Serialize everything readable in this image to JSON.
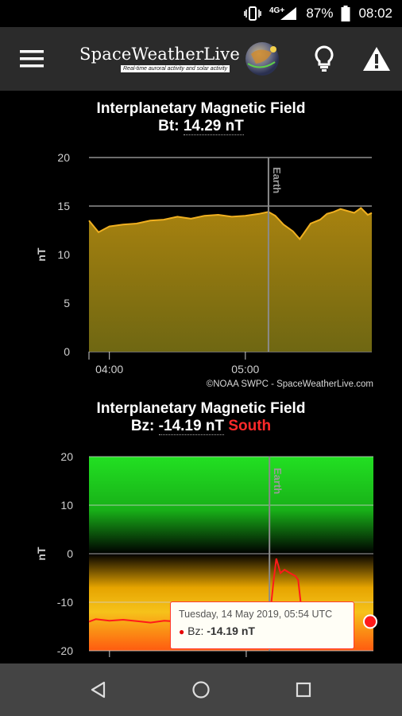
{
  "status_bar": {
    "network": "4G+",
    "battery": "87%",
    "time": "08:02"
  },
  "app": {
    "name": "SpaceWeatherLive",
    "tagline": "Real-time auroral activity and solar activity",
    "menu_icon": "hamburger-menu-icon",
    "bulb_icon": "lightbulb-icon",
    "warning_icon": "warning-icon"
  },
  "bt_chart": {
    "title": "Interplanetary Magnetic Field",
    "metric_label": "Bt:",
    "metric_value": "14.29 nT",
    "ylabel": "nT",
    "credit": "©NOAA SWPC - SpaceWeatherLive.com",
    "earth_label": "Earth"
  },
  "bz_chart": {
    "title": "Interplanetary Magnetic Field",
    "metric_label": "Bz:",
    "metric_value": "-14.19 nT",
    "direction": "South",
    "ylabel": "nT",
    "earth_label": "Earth",
    "tooltip": {
      "date": "Tuesday, 14 May 2019, 05:54 UTC",
      "series_label": "Bz:",
      "value": "-14.19 nT"
    }
  },
  "chart_data": [
    {
      "type": "area",
      "title": "Interplanetary Magnetic Field",
      "ylabel": "nT",
      "xlabel": "",
      "ylim": [
        0,
        20
      ],
      "yticks": [
        0,
        5,
        10,
        15,
        20
      ],
      "xticks": [
        "04:00",
        "05:00"
      ],
      "x": [
        3.85,
        3.92,
        4.0,
        4.1,
        4.2,
        4.3,
        4.4,
        4.5,
        4.6,
        4.7,
        4.8,
        4.9,
        5.0,
        5.1,
        5.17,
        5.22,
        5.28,
        5.35,
        5.4,
        5.48,
        5.55,
        5.6,
        5.65,
        5.7,
        5.75,
        5.8,
        5.85,
        5.9,
        5.93
      ],
      "y": [
        13.5,
        12.3,
        12.9,
        13.1,
        13.2,
        13.5,
        13.6,
        13.9,
        13.7,
        14.0,
        14.1,
        13.9,
        14.0,
        14.2,
        14.4,
        14.0,
        13.1,
        12.4,
        11.6,
        13.2,
        13.6,
        14.2,
        14.4,
        14.7,
        14.5,
        14.3,
        14.8,
        14.1,
        14.29
      ],
      "series": [
        {
          "name": "Bt",
          "color": "#e0a21a"
        }
      ],
      "annotations": [
        "Earth"
      ],
      "grid": true
    },
    {
      "type": "line",
      "title": "Interplanetary Magnetic Field",
      "ylabel": "nT",
      "xlabel": "",
      "ylim": [
        -20,
        20
      ],
      "yticks": [
        -20,
        -10,
        0,
        10,
        20
      ],
      "x": [
        3.85,
        3.9,
        4.0,
        4.1,
        4.2,
        4.3,
        4.4,
        4.5,
        4.6,
        4.7,
        4.8,
        4.9,
        5.0,
        5.1,
        5.15,
        5.17,
        5.2,
        5.22,
        5.25,
        5.28,
        5.32,
        5.36,
        5.38,
        5.4,
        5.42
      ],
      "y": [
        -14.0,
        -13.5,
        -13.8,
        -13.6,
        -13.9,
        -14.2,
        -13.8,
        -14.0,
        -13.9,
        -14.3,
        -14.1,
        -14.0,
        -13.9,
        -14.1,
        -14.0,
        -13.7,
        -5.5,
        -1.0,
        -4.0,
        -3.3,
        -4.0,
        -4.6,
        -5.4,
        -10.5,
        -14.0
      ],
      "series": [
        {
          "name": "Bz",
          "color": "#ff1a1a"
        }
      ],
      "annotations": [
        "Earth"
      ],
      "grid": true
    }
  ]
}
